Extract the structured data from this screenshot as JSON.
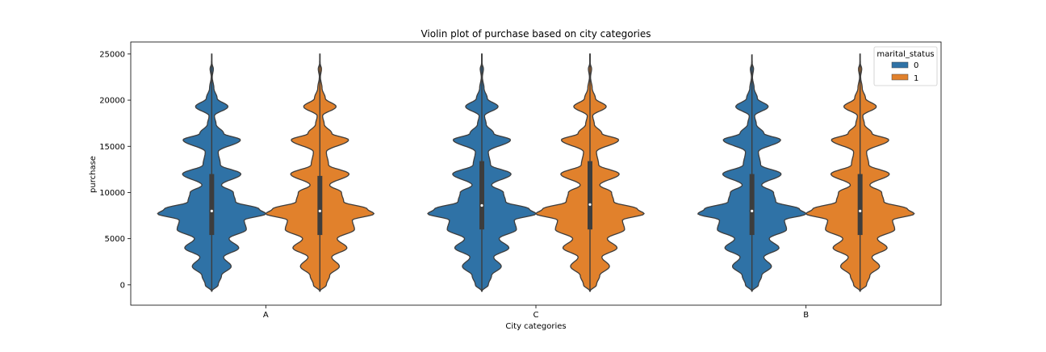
{
  "chart_data": {
    "type": "violin",
    "title": "Violin plot of purchase based on city categories",
    "xlabel": "City categories",
    "ylabel": "purchase",
    "categories": [
      "A",
      "C",
      "B"
    ],
    "ylim": [
      -2200,
      26300
    ],
    "yticks": [
      0,
      5000,
      10000,
      15000,
      20000,
      25000
    ],
    "grid": false,
    "legend": {
      "title": "marital_status",
      "position": "top-right"
    },
    "series": [
      {
        "name": "0",
        "color": "#2f72a6",
        "stats": [
          {
            "category": "A",
            "min": -700,
            "max": 25000,
            "q1": 5400,
            "median": 8000,
            "q3": 12000
          },
          {
            "category": "C",
            "min": -700,
            "max": 25000,
            "q1": 6000,
            "median": 8600,
            "q3": 13400
          },
          {
            "category": "B",
            "min": -700,
            "max": 24900,
            "q1": 5400,
            "median": 8000,
            "q3": 12000
          }
        ]
      },
      {
        "name": "1",
        "color": "#e1812c",
        "stats": [
          {
            "category": "A",
            "min": -700,
            "max": 25000,
            "q1": 5400,
            "median": 8000,
            "q3": 11800
          },
          {
            "category": "C",
            "min": -700,
            "max": 25000,
            "q1": 6000,
            "median": 8700,
            "q3": 13400
          },
          {
            "category": "B",
            "min": -700,
            "max": 25000,
            "q1": 5400,
            "median": 8000,
            "q3": 12000
          }
        ]
      }
    ],
    "density_profile": [
      [
        -700,
        0.0
      ],
      [
        0,
        0.12
      ],
      [
        1000,
        0.18
      ],
      [
        2000,
        0.36
      ],
      [
        3000,
        0.22
      ],
      [
        4000,
        0.5
      ],
      [
        5000,
        0.32
      ],
      [
        6000,
        0.64
      ],
      [
        7000,
        0.6
      ],
      [
        7700,
        1.0
      ],
      [
        8200,
        0.88
      ],
      [
        9000,
        0.44
      ],
      [
        10000,
        0.4
      ],
      [
        10800,
        0.18
      ],
      [
        12000,
        0.54
      ],
      [
        13000,
        0.16
      ],
      [
        14400,
        0.12
      ],
      [
        15700,
        0.53
      ],
      [
        16400,
        0.22
      ],
      [
        17400,
        0.08
      ],
      [
        18300,
        0.05
      ],
      [
        19300,
        0.3
      ],
      [
        20200,
        0.1
      ],
      [
        21300,
        0.04
      ],
      [
        22500,
        0.01
      ],
      [
        23400,
        0.03
      ],
      [
        24000,
        0.005
      ],
      [
        25000,
        0.0
      ]
    ]
  }
}
